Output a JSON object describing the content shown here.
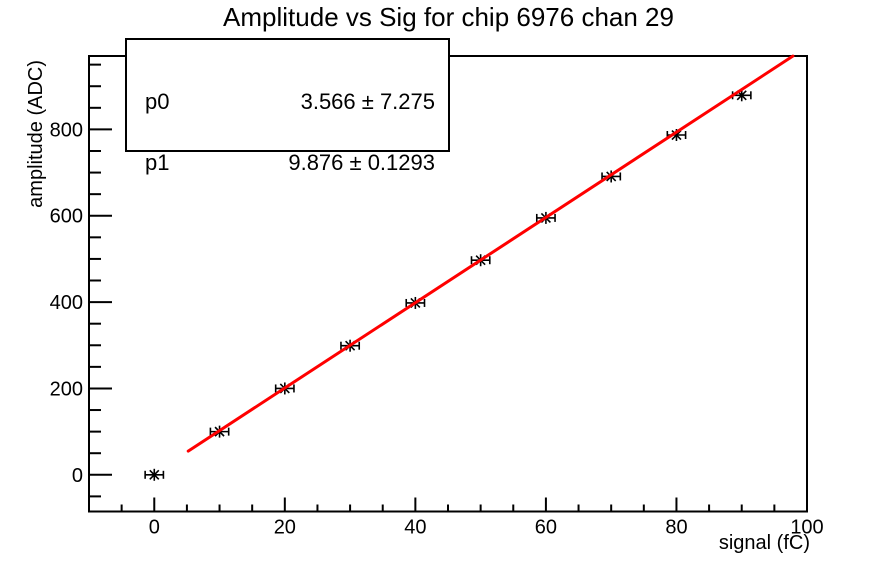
{
  "title": "Amplitude vs Sig for chip 6976 chan 29",
  "stats_box": {
    "rows": [
      {
        "param": "p0",
        "value": "3.566 ± 7.275"
      },
      {
        "param": "p1",
        "value": "9.876 ± 0.1293"
      }
    ]
  },
  "chart_data": {
    "type": "scatter",
    "title": "Amplitude vs Sig for chip 6976 chan 29",
    "xlabel": "signal (fC)",
    "ylabel": "amplitude (ADC)",
    "xlim": [
      -10,
      100
    ],
    "ylim": [
      -85,
      970
    ],
    "x_major_ticks": [
      0,
      20,
      40,
      60,
      80,
      100
    ],
    "x_minor_step": 5,
    "y_major_ticks": [
      0,
      200,
      400,
      600,
      800
    ],
    "y_minor_step": 50,
    "grid": false,
    "legend_position": "none",
    "series": [
      {
        "name": "amplitude vs signal data points",
        "marker": "asterisk",
        "error_bars": "x",
        "color": "#000000",
        "x": [
          0,
          10,
          20,
          30,
          40,
          50,
          60,
          70,
          80,
          90
        ],
        "y": [
          0,
          100,
          200,
          299,
          398,
          497,
          595,
          691,
          787,
          879
        ],
        "xerr": 1.4
      }
    ],
    "fit": {
      "type": "linear",
      "color": "#ff0000",
      "p0": 3.566,
      "p0_err": 7.275,
      "p1": 9.876,
      "p1_err": 0.1293,
      "x_draw_range": [
        5.2,
        97.85
      ]
    },
    "colors": {
      "background": "#ffffff",
      "frame": "#000000",
      "marker": "#000000",
      "fit_line": "#ff0000"
    }
  }
}
